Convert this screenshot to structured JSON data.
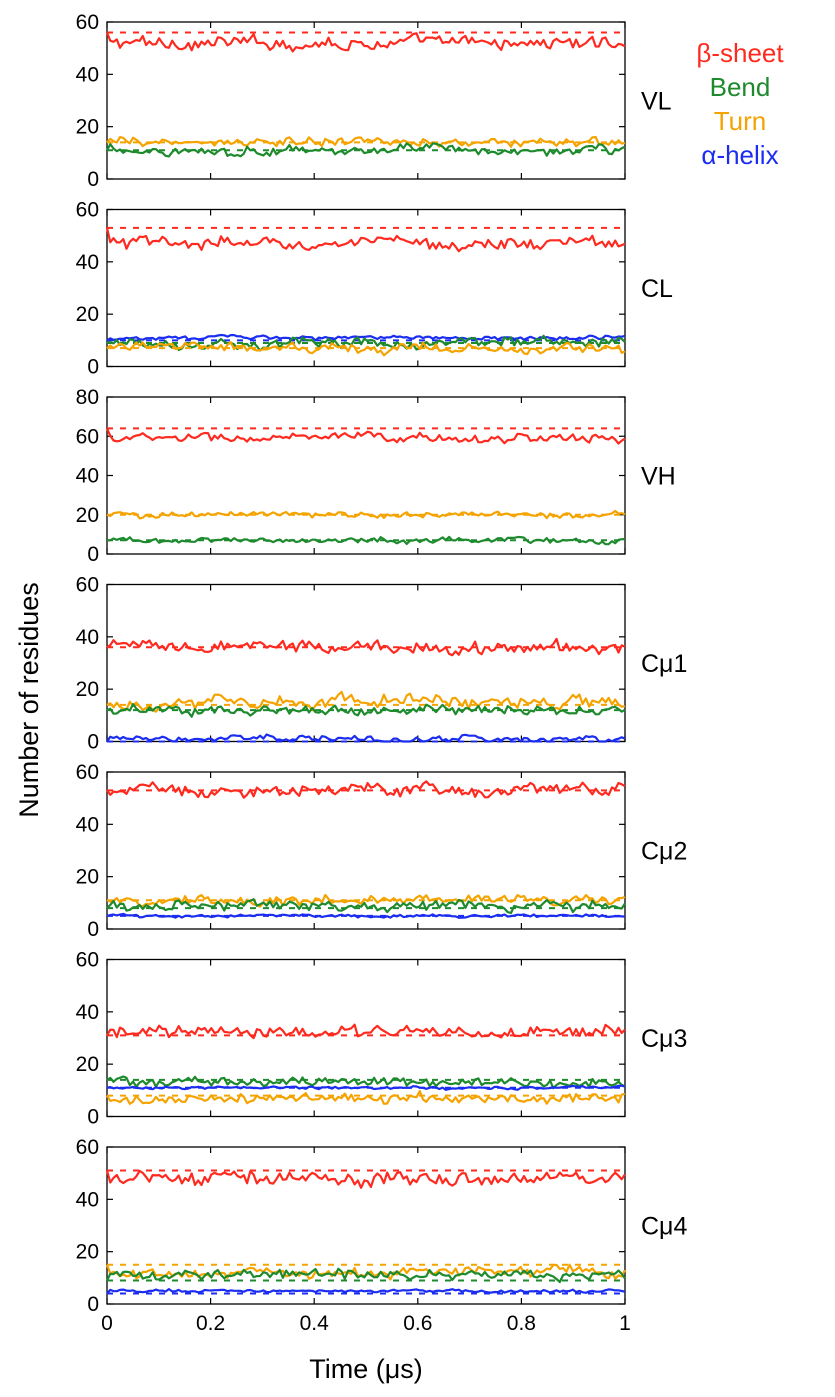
{
  "chart_data": {
    "type": "line",
    "xlabel": "Time (μs)",
    "ylabel": "Number of residues",
    "xlim": [
      0,
      1
    ],
    "xticks": [
      "0",
      "0.2",
      "0.4",
      "0.6",
      "0.8",
      "1"
    ],
    "grid": false,
    "legend_position": "top-right",
    "legend": [
      {
        "name": "β-sheet",
        "color": "#ff2a1f"
      },
      {
        "name": "Bend",
        "color": "#1e8a2e"
      },
      {
        "name": "Turn",
        "color": "#f5a300"
      },
      {
        "name": "α-helix",
        "color": "#1b2df0"
      }
    ],
    "panels": [
      {
        "label": "VL",
        "ylim": [
          0,
          60
        ],
        "yticks": [
          "0",
          "20",
          "40",
          "60"
        ],
        "series": [
          {
            "name": "β-sheet",
            "mean": 52,
            "amp": 2.5,
            "ref": 56
          },
          {
            "name": "Turn",
            "mean": 14,
            "amp": 1.8,
            "ref": 14
          },
          {
            "name": "Bend",
            "mean": 11,
            "amp": 2,
            "ref": 11
          }
        ]
      },
      {
        "label": "CL",
        "ylim": [
          0,
          60
        ],
        "yticks": [
          "0",
          "20",
          "40",
          "60"
        ],
        "series": [
          {
            "name": "β-sheet",
            "mean": 47,
            "amp": 2.5,
            "ref": 53
          },
          {
            "name": "α-helix",
            "mean": 11,
            "amp": 0.8,
            "ref": 10
          },
          {
            "name": "Bend",
            "mean": 9,
            "amp": 2,
            "ref": 9
          },
          {
            "name": "Turn",
            "mean": 7,
            "amp": 2,
            "ref": 7
          }
        ]
      },
      {
        "label": "VH",
        "ylim": [
          0,
          80
        ],
        "yticks": [
          "0",
          "20",
          "40",
          "60",
          "80"
        ],
        "series": [
          {
            "name": "β-sheet",
            "mean": 59,
            "amp": 2.5,
            "ref": 64
          },
          {
            "name": "Turn",
            "mean": 20,
            "amp": 1.5,
            "ref": 20
          },
          {
            "name": "Bend",
            "mean": 7,
            "amp": 1.5,
            "ref": 7
          }
        ]
      },
      {
        "label": "Cμ1",
        "ylim": [
          0,
          60
        ],
        "yticks": [
          "0",
          "20",
          "40",
          "60"
        ],
        "series": [
          {
            "name": "β-sheet",
            "mean": 36,
            "amp": 2.5,
            "ref": 36
          },
          {
            "name": "Turn",
            "mean": 15,
            "amp": 2.5,
            "ref": 14
          },
          {
            "name": "Bend",
            "mean": 12,
            "amp": 2,
            "ref": 12
          },
          {
            "name": "α-helix",
            "mean": 1,
            "amp": 1.2,
            "ref": 0
          }
        ]
      },
      {
        "label": "Cμ2",
        "ylim": [
          0,
          60
        ],
        "yticks": [
          "0",
          "20",
          "40",
          "60"
        ],
        "series": [
          {
            "name": "β-sheet",
            "mean": 53,
            "amp": 2.5,
            "ref": 53
          },
          {
            "name": "Turn",
            "mean": 11,
            "amp": 1.8,
            "ref": 11
          },
          {
            "name": "Bend",
            "mean": 9,
            "amp": 2,
            "ref": 8
          },
          {
            "name": "α-helix",
            "mean": 5,
            "amp": 0.6,
            "ref": 5
          }
        ]
      },
      {
        "label": "Cμ3",
        "ylim": [
          0,
          60
        ],
        "yticks": [
          "0",
          "20",
          "40",
          "60"
        ],
        "series": [
          {
            "name": "β-sheet",
            "mean": 32,
            "amp": 2.5,
            "ref": 31
          },
          {
            "name": "Bend",
            "mean": 13,
            "amp": 2,
            "ref": 14
          },
          {
            "name": "α-helix",
            "mean": 11,
            "amp": 0.6,
            "ref": 11
          },
          {
            "name": "Turn",
            "mean": 7,
            "amp": 2,
            "ref": 8
          }
        ]
      },
      {
        "label": "Cμ4",
        "ylim": [
          0,
          60
        ],
        "yticks": [
          "0",
          "20",
          "40",
          "60"
        ],
        "series": [
          {
            "name": "β-sheet",
            "mean": 48,
            "amp": 2.8,
            "ref": 51
          },
          {
            "name": "Turn",
            "mean": 12,
            "amp": 2,
            "ref": 15
          },
          {
            "name": "Bend",
            "mean": 11,
            "amp": 2,
            "ref": 9
          },
          {
            "name": "α-helix",
            "mean": 5,
            "amp": 0.6,
            "ref": 4
          }
        ]
      }
    ]
  }
}
